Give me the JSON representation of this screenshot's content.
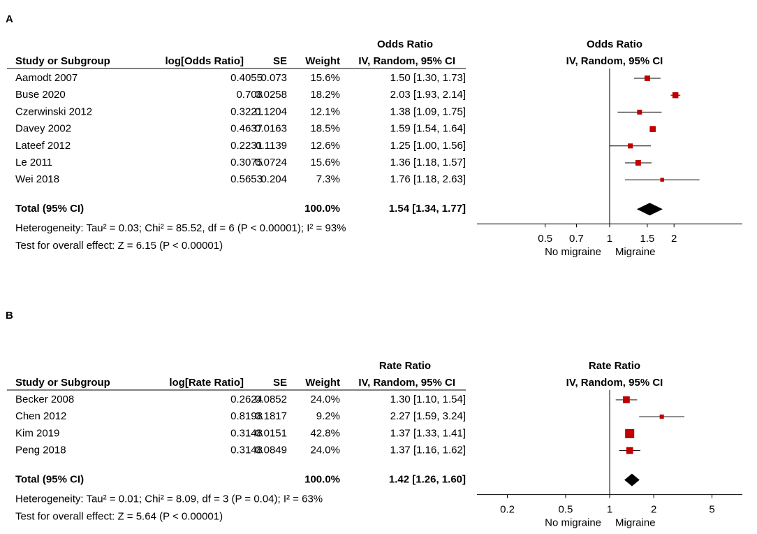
{
  "chart_data": [
    {
      "type": "forest",
      "panel": "A",
      "effect_title": "Odds Ratio",
      "columns": [
        "Study or Subgroup",
        "log[Odds Ratio]",
        "SE",
        "Weight",
        "IV, Random, 95% CI"
      ],
      "categories": [
        "Aamodt 2007",
        "Buse 2020",
        "Czerwinski 2012",
        "Davey 2002",
        "Lateef 2012",
        "Le 2011",
        "Wei 2018"
      ],
      "log_values": [
        0.4055,
        0.708,
        0.3221,
        0.4637,
        0.2231,
        0.3075,
        0.5653
      ],
      "se": [
        0.073,
        0.0258,
        0.1204,
        0.0163,
        0.1139,
        0.0724,
        0.204
      ],
      "weights": [
        15.6,
        18.2,
        12.1,
        18.5,
        12.6,
        15.6,
        7.3
      ],
      "weight_labels": [
        "15.6%",
        "18.2%",
        "12.1%",
        "18.5%",
        "12.6%",
        "15.6%",
        "7.3%"
      ],
      "values": [
        1.5,
        2.03,
        1.38,
        1.59,
        1.25,
        1.36,
        1.76
      ],
      "lower": [
        1.3,
        1.93,
        1.09,
        1.54,
        1.0,
        1.18,
        1.18
      ],
      "upper": [
        1.73,
        2.14,
        1.75,
        1.64,
        1.56,
        1.57,
        2.63
      ],
      "value_labels": [
        "1.50 [1.30, 1.73]",
        "2.03 [1.93, 2.14]",
        "1.38 [1.09, 1.75]",
        "1.59 [1.54, 1.64]",
        "1.25 [1.00, 1.56]",
        "1.36 [1.18, 1.57]",
        "1.76 [1.18, 2.63]"
      ],
      "total": {
        "label": "Total (95% CI)",
        "weight": 100,
        "weight_label": "100.0%",
        "value": 1.54,
        "lower": 1.34,
        "upper": 1.77,
        "value_label": "1.54 [1.34, 1.77]"
      },
      "heterogeneity": "Heterogeneity: Tau² = 0.03; Chi² = 85.52, df = 6 (P < 0.00001); I² = 93%",
      "overall_effect": "Test for overall effect: Z = 6.15 (P < 0.00001)",
      "axis_labels": [
        "No migraine",
        "Migraine"
      ],
      "log_scale": true,
      "xlim": [
        0.24,
        4.17
      ],
      "xticks": [
        0.5,
        0.7,
        1,
        1.5,
        2
      ],
      "color": "#c00000",
      "total_color": "#000000"
    },
    {
      "type": "forest",
      "panel": "B",
      "effect_title": "Rate Ratio",
      "columns": [
        "Study or Subgroup",
        "log[Rate Ratio]",
        "SE",
        "Weight",
        "IV, Random, 95% CI"
      ],
      "categories": [
        "Becker 2008",
        "Chen 2012",
        "Kim 2019",
        "Peng 2018"
      ],
      "log_values": [
        0.2624,
        0.8198,
        0.3148,
        0.3148
      ],
      "se": [
        0.0852,
        0.1817,
        0.0151,
        0.0849
      ],
      "weights": [
        24.0,
        9.2,
        42.8,
        24.0
      ],
      "weight_labels": [
        "24.0%",
        "9.2%",
        "42.8%",
        "24.0%"
      ],
      "values": [
        1.3,
        2.27,
        1.37,
        1.37
      ],
      "lower": [
        1.1,
        1.59,
        1.33,
        1.16
      ],
      "upper": [
        1.54,
        3.24,
        1.41,
        1.62
      ],
      "value_labels": [
        "1.30 [1.10, 1.54]",
        "2.27 [1.59, 3.24]",
        "1.37 [1.33, 1.41]",
        "1.37 [1.16, 1.62]"
      ],
      "total": {
        "label": "Total (95% CI)",
        "weight": 100,
        "weight_label": "100.0%",
        "value": 1.42,
        "lower": 1.26,
        "upper": 1.6,
        "value_label": "1.42 [1.26, 1.60]"
      },
      "heterogeneity": "Heterogeneity: Tau² = 0.01; Chi² = 8.09, df = 3 (P = 0.04); I² = 63%",
      "overall_effect": "Test for overall effect: Z = 5.64 (P < 0.00001)",
      "axis_labels": [
        "No migraine",
        "Migraine"
      ],
      "log_scale": true,
      "xlim": [
        0.124,
        8.06
      ],
      "xticks": [
        0.2,
        0.5,
        1,
        2,
        5
      ],
      "color": "#c00000",
      "total_color": "#000000"
    }
  ]
}
